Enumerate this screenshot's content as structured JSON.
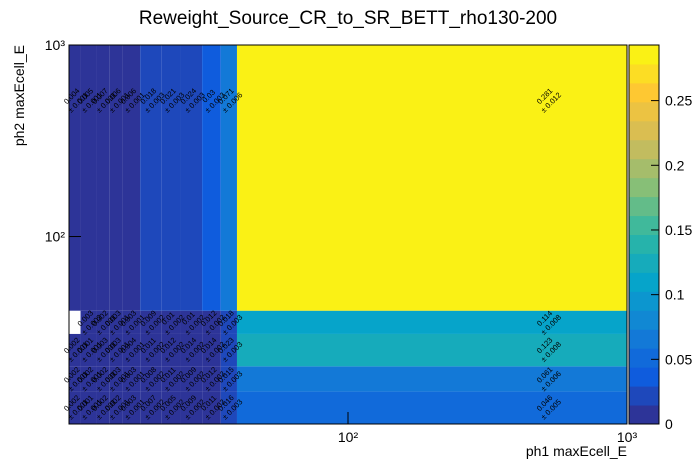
{
  "chart_data": {
    "type": "heatmap",
    "title": "Reweight_Source_CR_to_SR_BETT_rho130-200",
    "x_label": "ph1 maxEcell_E",
    "y_label": "ph2 maxEcell_E",
    "log_x": true,
    "log_y": true,
    "xlim": [
      10,
      1000
    ],
    "ylim": [
      10.5,
      1000
    ],
    "xticks": [
      {
        "value": 100,
        "label": "10²"
      },
      {
        "value": 1000,
        "label": "10³"
      }
    ],
    "yticks": [
      {
        "value": 100,
        "label": "10²"
      },
      {
        "value": 1000,
        "label": "10³"
      }
    ],
    "x_edges": [
      10,
      11,
      12.5,
      14,
      15.5,
      18,
      21.5,
      25,
      30,
      35,
      40,
      1000
    ],
    "y_edges": [
      10.5,
      15.5,
      21,
      31,
      41,
      1000
    ],
    "values": [
      [
        0.002,
        0.001,
        0.002,
        0.002,
        0.003,
        0.007,
        0.005,
        0.009,
        0.011,
        0.016,
        0.046
      ],
      [
        0.002,
        0.002,
        0.002,
        0.003,
        0.003,
        0.008,
        0.011,
        0.009,
        0.012,
        0.015,
        0.061
      ],
      [
        0.002,
        0.001,
        0.003,
        0.003,
        0.004,
        0.011,
        0.012,
        0.014,
        0.014,
        0.023,
        0.123
      ],
      [
        null,
        0.003,
        0.002,
        0.003,
        0.003,
        0.009,
        0.01,
        0.01,
        0.012,
        0.018,
        0.114
      ],
      [
        0.004,
        0.005,
        0.007,
        0.006,
        0.006,
        0.018,
        0.021,
        0.024,
        0.03,
        0.071,
        0.281
      ]
    ],
    "errors": [
      [
        0.001,
        0.001,
        0.001,
        0.001,
        0.001,
        0.002,
        0.002,
        0.002,
        0.002,
        0.003,
        0.005
      ],
      [
        0.001,
        0.001,
        0.001,
        0.001,
        0.001,
        0.002,
        0.002,
        0.002,
        0.002,
        0.003,
        0.006
      ],
      [
        0.001,
        0.001,
        0.001,
        0.001,
        0.001,
        0.002,
        0.002,
        0.002,
        0.002,
        0.003,
        0.008
      ],
      [
        null,
        0.002,
        0.001,
        0.001,
        0.001,
        0.002,
        0.002,
        0.002,
        0.002,
        0.003,
        0.008
      ],
      [
        0.001,
        0.001,
        0.001,
        0.001,
        0.001,
        0.003,
        0.003,
        0.003,
        0.003,
        0.006,
        0.012
      ]
    ],
    "error_labels": [
      [
        "± 0.001",
        "± 0.001",
        "± 0.001",
        "± 0.001",
        "± 0.001",
        "± 0.002",
        "± 0.002",
        "± 0.002",
        "± 0.002",
        "± 0.003",
        "± 0.005"
      ],
      [
        "± 0.001",
        "± 0.001",
        "± 0.001",
        "± 0.001",
        "± 0.001",
        "± 0.002",
        "± 0.002",
        "± 0.002",
        "± 0.002",
        "± 0.003",
        "± 0.006"
      ],
      [
        "± 0.001",
        "± 0.001",
        "± 0.001",
        "± 0.001",
        "± 0.001",
        "± 0.002",
        "± 0.002",
        "± 0.002",
        "± 0.002",
        "± 0.003",
        "± 0.008"
      ],
      [
        null,
        "± 0.002",
        "± 0.001",
        "± 0.001",
        "± 0.001",
        "± 0.002",
        "± 0.002",
        "± 0.002",
        "± 0.002",
        "± 0.003",
        "± 0.008"
      ],
      [
        "± 0.001",
        "± 0.001",
        "± 0.001",
        "± 0.001",
        "± 0.001",
        "± 0.003",
        "± 0.003",
        "± 0.003",
        "± 0.003",
        "± 0.006",
        "± 0.012"
      ]
    ],
    "zlim": [
      0,
      0.293
    ],
    "zticks": [
      0,
      0.05,
      0.1,
      0.15,
      0.2,
      0.25
    ],
    "colormap": "bird",
    "color_levels": 20
  }
}
